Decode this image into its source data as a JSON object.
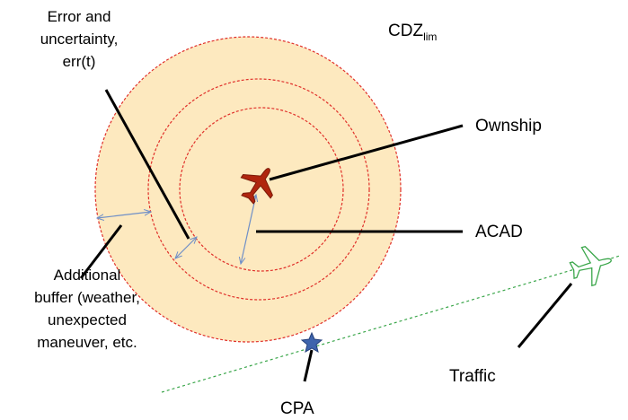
{
  "labels": {
    "error": [
      "Error and",
      "uncertainty,",
      "err(t)"
    ],
    "cdz": {
      "main": "CDZ",
      "sub": "lim"
    },
    "ownship": "Ownship",
    "acad": "ACAD",
    "buffer": [
      "Additional",
      "buffer (weather,",
      "unexpected",
      "maneuver, etc."
    ],
    "traffic": "Traffic",
    "cpa": "CPA"
  }
}
